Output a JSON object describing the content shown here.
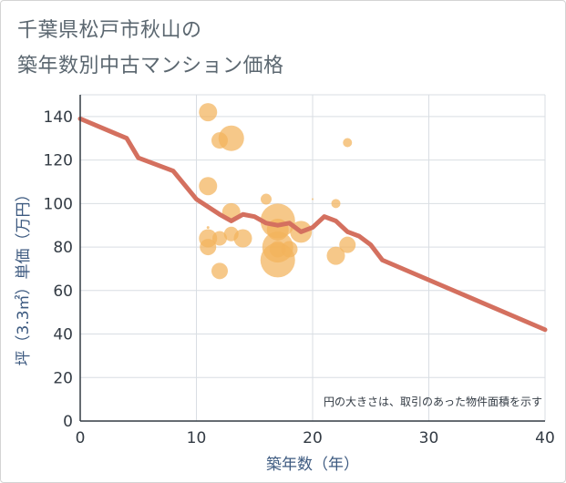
{
  "title_line1": "千葉県松戸市秋山の",
  "title_line2": "築年数別中古マンション価格",
  "chart_data": {
    "type": "scatter",
    "xlabel": "築年数（年）",
    "ylabel": "坪（3.3㎡）単価（万円）",
    "xlim": [
      0,
      40
    ],
    "ylim": [
      0,
      150
    ],
    "xticks": [
      0,
      10,
      20,
      30,
      40
    ],
    "yticks": [
      0,
      20,
      40,
      60,
      80,
      100,
      120,
      140
    ],
    "grid": true,
    "note": "円の大きさは、取引のあった物件面積を示す",
    "colors": {
      "bubble": "#f2b35c",
      "line": "#d4705f"
    },
    "bubbles": [
      {
        "x": 11,
        "y": 142,
        "size": 10
      },
      {
        "x": 11,
        "y": 108,
        "size": 10
      },
      {
        "x": 11,
        "y": 89,
        "size": 1.5
      },
      {
        "x": 11,
        "y": 84,
        "size": 10
      },
      {
        "x": 11,
        "y": 80,
        "size": 9
      },
      {
        "x": 12,
        "y": 129,
        "size": 9
      },
      {
        "x": 12,
        "y": 84,
        "size": 8
      },
      {
        "x": 12,
        "y": 69,
        "size": 9
      },
      {
        "x": 13,
        "y": 130,
        "size": 14
      },
      {
        "x": 13,
        "y": 96,
        "size": 10
      },
      {
        "x": 13,
        "y": 86,
        "size": 8
      },
      {
        "x": 14,
        "y": 84,
        "size": 10
      },
      {
        "x": 16,
        "y": 102,
        "size": 6
      },
      {
        "x": 17,
        "y": 92,
        "size": 19
      },
      {
        "x": 17,
        "y": 88,
        "size": 12
      },
      {
        "x": 17,
        "y": 80,
        "size": 17
      },
      {
        "x": 17,
        "y": 74,
        "size": 19
      },
      {
        "x": 17,
        "y": 79,
        "size": 9
      },
      {
        "x": 18,
        "y": 79,
        "size": 9
      },
      {
        "x": 19,
        "y": 87,
        "size": 12
      },
      {
        "x": 20,
        "y": 102,
        "size": 1
      },
      {
        "x": 22,
        "y": 100,
        "size": 5
      },
      {
        "x": 22,
        "y": 76,
        "size": 10
      },
      {
        "x": 23,
        "y": 128,
        "size": 5
      },
      {
        "x": 23,
        "y": 81,
        "size": 9
      }
    ],
    "line": {
      "x": [
        0,
        4,
        5,
        8,
        10,
        12,
        13,
        14,
        15,
        16,
        17,
        18,
        19,
        20,
        21,
        22,
        23,
        24,
        25,
        26,
        40
      ],
      "y": [
        139,
        130,
        121,
        115,
        102,
        95,
        92,
        95,
        94,
        91,
        90,
        91,
        87,
        89,
        94,
        92,
        87,
        85,
        81,
        74,
        42
      ]
    }
  }
}
